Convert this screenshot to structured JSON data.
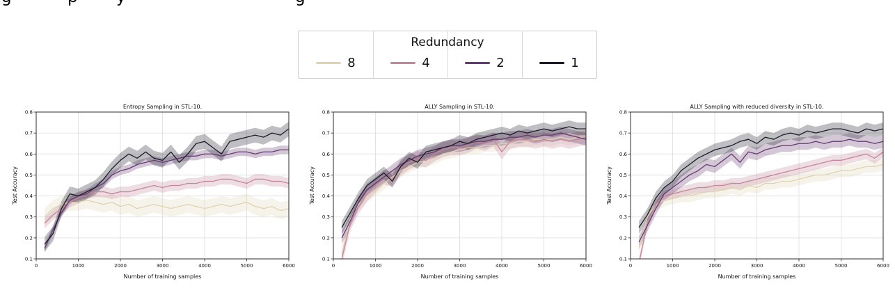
{
  "caption_fragment": {
    "letters": [
      "g",
      "p",
      "y",
      "g"
    ]
  },
  "legend": {
    "title": "Redundancy",
    "entries": [
      {
        "label": "8",
        "color": "#dfd3b2"
      },
      {
        "label": "4",
        "color": "#c3869a"
      },
      {
        "label": "2",
        "color": "#643a70"
      },
      {
        "label": "1",
        "color": "#1a1a28"
      }
    ]
  },
  "chart_data": [
    {
      "type": "line",
      "title": "Entropy Sampling in STL-10.",
      "xlabel": "Number of training samples",
      "ylabel": "Test Accuracy",
      "xlim": [
        0,
        6000
      ],
      "ylim": [
        0.1,
        0.8
      ],
      "xticks": [
        0,
        1000,
        2000,
        3000,
        4000,
        5000,
        6000
      ],
      "yticks": [
        0.1,
        0.2,
        0.3,
        0.4,
        0.5,
        0.6,
        0.7,
        0.8
      ],
      "grid": true,
      "legend_position": "figure-top",
      "x": [
        200,
        400,
        600,
        800,
        1000,
        1200,
        1400,
        1600,
        1800,
        2000,
        2200,
        2400,
        2600,
        2800,
        3000,
        3200,
        3400,
        3600,
        3800,
        4000,
        4200,
        4400,
        4600,
        4800,
        5000,
        5200,
        5400,
        5600,
        5800,
        6000
      ],
      "series": [
        {
          "name": "8",
          "color": "#dfd3b2",
          "band": 0.04,
          "values": [
            0.3,
            0.34,
            0.36,
            0.37,
            0.37,
            0.38,
            0.37,
            0.36,
            0.37,
            0.35,
            0.36,
            0.34,
            0.35,
            0.36,
            0.35,
            0.34,
            0.35,
            0.36,
            0.35,
            0.34,
            0.35,
            0.36,
            0.35,
            0.36,
            0.37,
            0.35,
            0.34,
            0.35,
            0.33,
            0.34
          ]
        },
        {
          "name": "4",
          "color": "#c3869a",
          "band": 0.025,
          "values": [
            0.27,
            0.31,
            0.34,
            0.37,
            0.39,
            0.41,
            0.42,
            0.42,
            0.41,
            0.42,
            0.42,
            0.43,
            0.44,
            0.45,
            0.44,
            0.45,
            0.45,
            0.46,
            0.46,
            0.47,
            0.47,
            0.48,
            0.48,
            0.47,
            0.46,
            0.48,
            0.48,
            0.47,
            0.47,
            0.46
          ]
        },
        {
          "name": "2",
          "color": "#643a70",
          "band": 0.02,
          "values": [
            0.15,
            0.24,
            0.32,
            0.38,
            0.4,
            0.41,
            0.44,
            0.46,
            0.5,
            0.52,
            0.53,
            0.55,
            0.56,
            0.57,
            0.56,
            0.57,
            0.58,
            0.59,
            0.59,
            0.6,
            0.6,
            0.59,
            0.6,
            0.61,
            0.61,
            0.6,
            0.61,
            0.61,
            0.62,
            0.62
          ]
        },
        {
          "name": "1",
          "color": "#1a1a28",
          "band": 0.035,
          "values": [
            0.17,
            0.22,
            0.34,
            0.41,
            0.4,
            0.42,
            0.44,
            0.48,
            0.53,
            0.57,
            0.6,
            0.58,
            0.61,
            0.58,
            0.57,
            0.61,
            0.56,
            0.6,
            0.65,
            0.66,
            0.63,
            0.6,
            0.66,
            0.67,
            0.68,
            0.69,
            0.68,
            0.7,
            0.69,
            0.72
          ]
        }
      ]
    },
    {
      "type": "line",
      "title": "ALLY Sampling in STL-10.",
      "xlabel": "Number of training samples",
      "ylabel": "Test Accuracy",
      "xlim": [
        0,
        6000
      ],
      "ylim": [
        0.1,
        0.8
      ],
      "xticks": [
        0,
        1000,
        2000,
        3000,
        4000,
        5000,
        6000
      ],
      "yticks": [
        0.1,
        0.2,
        0.3,
        0.4,
        0.5,
        0.6,
        0.7,
        0.8
      ],
      "grid": true,
      "legend_position": "figure-top",
      "x": [
        200,
        400,
        600,
        800,
        1000,
        1200,
        1400,
        1600,
        1800,
        2000,
        2200,
        2400,
        2600,
        2800,
        3000,
        3200,
        3400,
        3600,
        3800,
        4000,
        4200,
        4400,
        4600,
        4800,
        5000,
        5200,
        5400,
        5600,
        5800,
        6000
      ],
      "series": [
        {
          "name": "8",
          "color": "#dfd3b2",
          "band": 0.03,
          "values": [
            0.12,
            0.29,
            0.36,
            0.4,
            0.43,
            0.46,
            0.49,
            0.52,
            0.54,
            0.56,
            0.57,
            0.58,
            0.6,
            0.61,
            0.62,
            0.63,
            0.63,
            0.64,
            0.64,
            0.65,
            0.65,
            0.66,
            0.66,
            0.67,
            0.67,
            0.67,
            0.68,
            0.67,
            0.68,
            0.68
          ]
        },
        {
          "name": "4",
          "color": "#c3869a",
          "band": 0.035,
          "values": [
            0.1,
            0.27,
            0.35,
            0.41,
            0.45,
            0.49,
            0.48,
            0.53,
            0.56,
            0.58,
            0.57,
            0.6,
            0.62,
            0.63,
            0.63,
            0.64,
            0.66,
            0.65,
            0.67,
            0.61,
            0.66,
            0.67,
            0.67,
            0.66,
            0.67,
            0.66,
            0.67,
            0.66,
            0.67,
            0.68
          ]
        },
        {
          "name": "2",
          "color": "#643a70",
          "band": 0.03,
          "values": [
            0.2,
            0.28,
            0.37,
            0.43,
            0.46,
            0.49,
            0.52,
            0.55,
            0.57,
            0.59,
            0.6,
            0.61,
            0.63,
            0.64,
            0.64,
            0.65,
            0.66,
            0.66,
            0.67,
            0.67,
            0.68,
            0.68,
            0.69,
            0.68,
            0.69,
            0.69,
            0.7,
            0.69,
            0.68,
            0.67
          ]
        },
        {
          "name": "1",
          "color": "#1a1a28",
          "band": 0.03,
          "values": [
            0.25,
            0.32,
            0.39,
            0.45,
            0.48,
            0.51,
            0.47,
            0.54,
            0.58,
            0.56,
            0.61,
            0.62,
            0.63,
            0.64,
            0.66,
            0.65,
            0.67,
            0.68,
            0.69,
            0.7,
            0.69,
            0.71,
            0.7,
            0.71,
            0.72,
            0.71,
            0.72,
            0.73,
            0.72,
            0.72
          ]
        }
      ]
    },
    {
      "type": "line",
      "title": "ALLY Sampling with reduced diversity in STL-10.",
      "xlabel": "Number of training samples",
      "ylabel": "Test Accuracy",
      "xlim": [
        0,
        6000
      ],
      "ylim": [
        0.1,
        0.8
      ],
      "xticks": [
        0,
        1000,
        2000,
        3000,
        4000,
        5000,
        6000
      ],
      "yticks": [
        0.1,
        0.2,
        0.3,
        0.4,
        0.5,
        0.6,
        0.7,
        0.8
      ],
      "grid": true,
      "legend_position": "figure-top",
      "x": [
        200,
        400,
        600,
        800,
        1000,
        1200,
        1400,
        1600,
        1800,
        2000,
        2200,
        2400,
        2600,
        2800,
        3000,
        3200,
        3400,
        3600,
        3800,
        4000,
        4200,
        4400,
        4600,
        4800,
        5000,
        5200,
        5400,
        5600,
        5800,
        6000
      ],
      "series": [
        {
          "name": "8",
          "color": "#dfd3b2",
          "band": 0.03,
          "values": [
            0.15,
            0.3,
            0.36,
            0.38,
            0.39,
            0.4,
            0.4,
            0.41,
            0.42,
            0.42,
            0.43,
            0.44,
            0.43,
            0.45,
            0.44,
            0.46,
            0.46,
            0.47,
            0.47,
            0.48,
            0.49,
            0.5,
            0.5,
            0.51,
            0.52,
            0.52,
            0.53,
            0.54,
            0.54,
            0.55
          ]
        },
        {
          "name": "4",
          "color": "#c3869a",
          "band": 0.025,
          "values": [
            0.08,
            0.27,
            0.36,
            0.4,
            0.41,
            0.42,
            0.43,
            0.44,
            0.44,
            0.45,
            0.45,
            0.46,
            0.46,
            0.47,
            0.48,
            0.49,
            0.5,
            0.51,
            0.52,
            0.53,
            0.54,
            0.55,
            0.56,
            0.57,
            0.57,
            0.58,
            0.59,
            0.6,
            0.58,
            0.61
          ]
        },
        {
          "name": "2",
          "color": "#643a70",
          "band": 0.03,
          "values": [
            0.18,
            0.26,
            0.34,
            0.41,
            0.44,
            0.47,
            0.5,
            0.52,
            0.55,
            0.54,
            0.57,
            0.6,
            0.56,
            0.61,
            0.6,
            0.62,
            0.63,
            0.64,
            0.64,
            0.65,
            0.65,
            0.66,
            0.65,
            0.66,
            0.66,
            0.67,
            0.66,
            0.66,
            0.65,
            0.66
          ]
        },
        {
          "name": "1",
          "color": "#1a1a28",
          "band": 0.03,
          "values": [
            0.25,
            0.31,
            0.39,
            0.44,
            0.47,
            0.52,
            0.55,
            0.58,
            0.6,
            0.62,
            0.63,
            0.64,
            0.66,
            0.67,
            0.65,
            0.68,
            0.67,
            0.69,
            0.7,
            0.69,
            0.71,
            0.7,
            0.71,
            0.72,
            0.72,
            0.71,
            0.7,
            0.72,
            0.71,
            0.72
          ]
        }
      ]
    }
  ]
}
